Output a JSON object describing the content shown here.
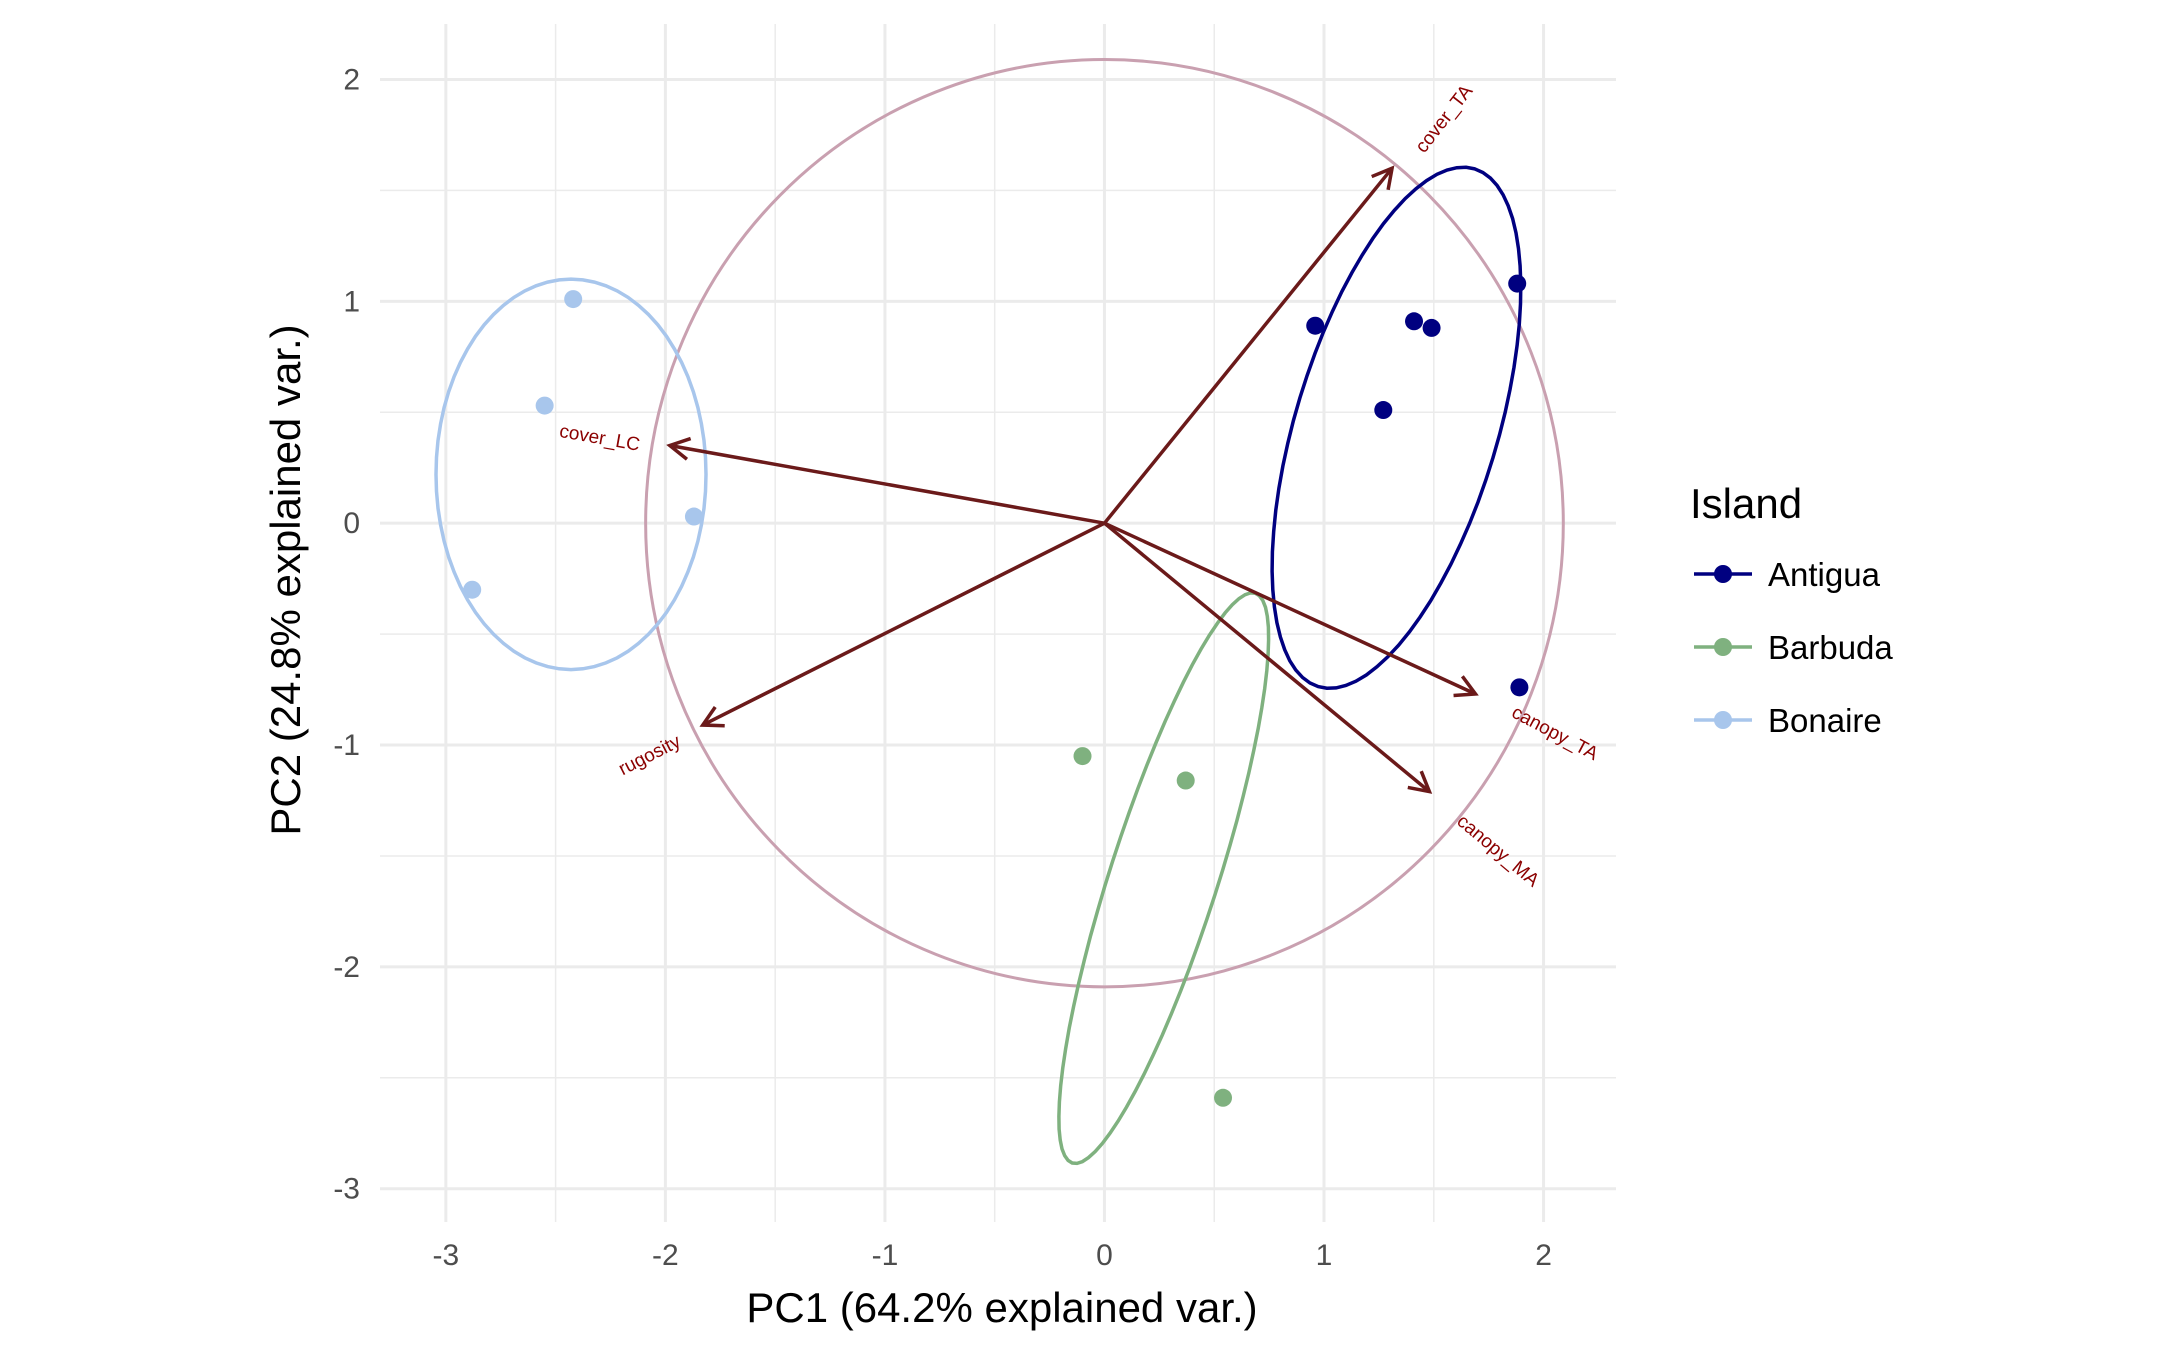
{
  "chart_data": {
    "type": "scatter",
    "xlabel": "PC1 (64.2% explained var.)",
    "ylabel": "PC2 (24.8% explained var.)",
    "xlim": [
      -3.3,
      2.33
    ],
    "ylim": [
      -3.15,
      2.25
    ],
    "xticks": [
      -3,
      -2,
      -1,
      0,
      1,
      2
    ],
    "yticks": [
      -3,
      -2,
      -1,
      0,
      1,
      2
    ],
    "grid": true,
    "legend": {
      "title": "Island",
      "placement": "right"
    },
    "series": [
      {
        "name": "Antigua",
        "color": "#000080",
        "points": [
          [
            0.96,
            0.89
          ],
          [
            1.27,
            0.51
          ],
          [
            1.41,
            0.91
          ],
          [
            1.49,
            0.88
          ],
          [
            1.88,
            1.08
          ],
          [
            1.89,
            -0.74
          ]
        ],
        "ellipse": {
          "cx": 1.33,
          "cy": 0.43,
          "rx": 1.22,
          "ry": 0.46,
          "angle_deg": 73
        }
      },
      {
        "name": "Barbuda",
        "color": "#7FB17F",
        "points": [
          [
            -0.1,
            -1.05
          ],
          [
            0.37,
            -1.16
          ],
          [
            0.54,
            -2.59
          ]
        ],
        "ellipse": {
          "cx": 0.27,
          "cy": -1.6,
          "rx": 1.35,
          "ry": 0.245,
          "angle_deg": 72
        }
      },
      {
        "name": "Bonaire",
        "color": "#A8C6EC",
        "points": [
          [
            -2.42,
            1.01
          ],
          [
            -2.55,
            0.53
          ],
          [
            -1.87,
            0.03
          ],
          [
            -2.88,
            -0.3
          ]
        ],
        "ellipse": {
          "cx": -2.43,
          "cy": 0.22,
          "rx": 0.615,
          "ry": 0.88,
          "angle_deg": 0
        }
      }
    ],
    "loadings": {
      "color": "#6B1A1A",
      "label_color": "#8B0000",
      "circle_color": "#C9A0B0",
      "circle_radius": 2.09,
      "vectors": [
        {
          "name": "cover_TA",
          "x": 1.31,
          "y": 1.6,
          "label_x": 1.55,
          "label_y": 1.82,
          "label_angle": -52
        },
        {
          "name": "cover_LC",
          "x": -1.98,
          "y": 0.35,
          "label_x": -2.3,
          "label_y": 0.38,
          "label_angle": 10
        },
        {
          "name": "rugosity",
          "x": -1.83,
          "y": -0.91,
          "label_x": -2.07,
          "label_y": -1.05,
          "label_angle": -27
        },
        {
          "name": "canopy_TA",
          "x": 1.69,
          "y": -0.77,
          "label_x": 2.05,
          "label_y": -0.95,
          "label_angle": 28
        },
        {
          "name": "canopy_MA",
          "x": 1.48,
          "y": -1.21,
          "label_x": 1.79,
          "label_y": -1.48,
          "label_angle": 40
        }
      ]
    }
  }
}
